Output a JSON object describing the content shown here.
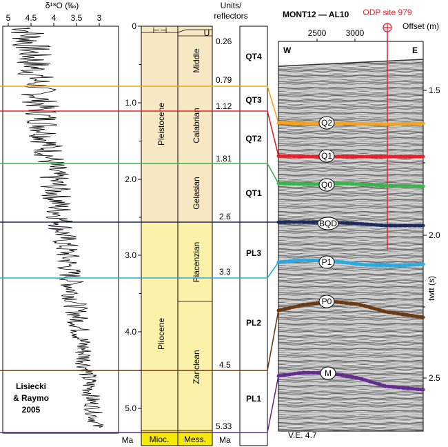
{
  "isotope": {
    "axis_title": "δ¹⁸O (‰)",
    "ticks": [
      "5",
      "4.5",
      "4",
      "3.5",
      "3"
    ],
    "credit_lines": [
      "Lisiecki",
      "& Raymo",
      "2005"
    ],
    "bottom_label": "Ma"
  },
  "age_axis": {
    "ticks": [
      "0",
      "1.0",
      "2.0",
      "3.0",
      "4.0",
      "5.0"
    ]
  },
  "chrono": {
    "epochs": [
      {
        "name": "Pleistocene",
        "color": "#f5e8c3"
      },
      {
        "name": "Pliocene",
        "color": "#fbf1a9"
      },
      {
        "name": "Mioc.",
        "color": "#f6e80a"
      }
    ],
    "stages": [
      {
        "name": "Middle"
      },
      {
        "name": "Calabrian"
      },
      {
        "name": "Gelasian"
      },
      {
        "name": "Piacenzian"
      },
      {
        "name": "Zanclean"
      },
      {
        "name": "Mess."
      }
    ],
    "ages": [
      "0.26",
      "0.79",
      "1.12",
      "1.81",
      "2.6",
      "3.3",
      "4.5",
      "5.33"
    ],
    "bottom_label": "Ma"
  },
  "units": {
    "header_lines": [
      "Units/",
      "reflectors"
    ],
    "names": [
      "QT4",
      "QT3",
      "QT2",
      "QT1",
      "PL3",
      "PL2",
      "PL1"
    ]
  },
  "seismic": {
    "title": "MONT12 — AL10",
    "site_label": "ODP site 979",
    "offset_ticks": [
      "2500",
      "3000"
    ],
    "offset_label": "Offset (m)",
    "west": "W",
    "east": "E",
    "twt_ticks": [
      "1.5",
      "2.0",
      "2.5"
    ],
    "twt_label": "twtt (s)",
    "ve_label": "V.E. 4.7",
    "reflectors": [
      {
        "name": "Q2",
        "color": "#f7a21b"
      },
      {
        "name": "Q1",
        "color": "#e8202a"
      },
      {
        "name": "Q0",
        "color": "#39b44a"
      },
      {
        "name": "BQD",
        "color": "#1f2a5e"
      },
      {
        "name": "P1",
        "color": "#29a9e1"
      },
      {
        "name": "P0",
        "color": "#6b3a13"
      },
      {
        "name": "M",
        "color": "#662d91"
      }
    ]
  }
}
